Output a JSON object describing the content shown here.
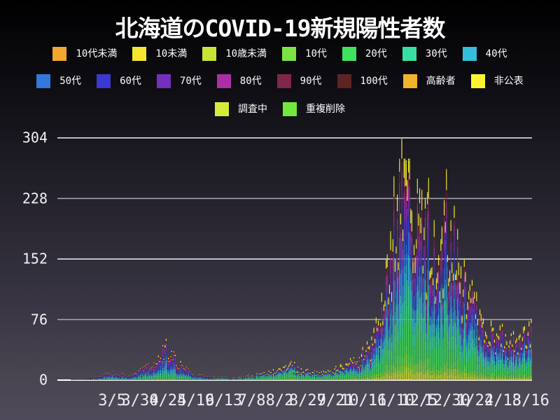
{
  "title": "北海道のCOVID-19新規陽性者数",
  "legend": {
    "rows": [
      [
        0,
        1,
        2,
        3,
        4,
        5,
        6
      ],
      [
        7,
        8,
        9,
        10,
        11,
        12,
        13,
        14
      ],
      [
        15,
        16
      ]
    ]
  },
  "colors": {
    "background_top": "#000000",
    "background_bottom": "#4f4b5a",
    "gridline_bright": "#f2f2f5",
    "gridline_dim": "#a9a9b4",
    "baseline": "#ffffff",
    "text": "#ffffff"
  },
  "chart_data": {
    "type": "bar",
    "stacked": true,
    "title": "北海道のCOVID-19新規陽性者数",
    "xlabel": "",
    "ylabel": "",
    "ylim": [
      0,
      304
    ],
    "y_ticks": [
      0,
      76,
      152,
      228,
      304
    ],
    "x_tick_labels": [
      "3/5",
      "3/30",
      "4/24",
      "5/19",
      "6/13",
      "7/8",
      "8/2",
      "8/27",
      "9/21",
      "10/16",
      "11/10",
      "12/5",
      "12/30",
      "1/24",
      "2/18",
      "3/16"
    ],
    "x_tick_interval_days": 25,
    "first_tick_day_index": 49,
    "days_total": 425,
    "grid": true,
    "legend_position": "top",
    "max_daily_total": 304,
    "peak_day_index": 308,
    "series": [
      {
        "name": "10代未満",
        "color": "#f2a72e"
      },
      {
        "name": "10未満",
        "color": "#f6e52f"
      },
      {
        "name": "10歳未満",
        "color": "#c9e436"
      },
      {
        "name": "10代",
        "color": "#7ce344"
      },
      {
        "name": "20代",
        "color": "#3fe25f"
      },
      {
        "name": "30代",
        "color": "#38dfa2"
      },
      {
        "name": "40代",
        "color": "#35bedc"
      },
      {
        "name": "50代",
        "color": "#3378db"
      },
      {
        "name": "60代",
        "color": "#3a39cf"
      },
      {
        "name": "70代",
        "color": "#7330be"
      },
      {
        "name": "80代",
        "color": "#ac2ea4"
      },
      {
        "name": "90代",
        "color": "#7e2747"
      },
      {
        "name": "100代",
        "color": "#5f2323"
      },
      {
        "name": "高齢者",
        "color": "#f2b32c"
      },
      {
        "name": "非公表",
        "color": "#fcf431"
      },
      {
        "name": "調査中",
        "color": "#d6ec3b"
      },
      {
        "name": "重複削除",
        "color": "#70e93c"
      }
    ],
    "envelope_daily_total": [
      [
        0,
        0
      ],
      [
        10,
        0
      ],
      [
        13,
        1
      ],
      [
        20,
        1
      ],
      [
        27,
        2
      ],
      [
        34,
        4
      ],
      [
        41,
        6
      ],
      [
        49,
        9
      ],
      [
        56,
        7
      ],
      [
        63,
        5
      ],
      [
        70,
        8
      ],
      [
        77,
        13
      ],
      [
        84,
        18
      ],
      [
        90,
        27
      ],
      [
        95,
        39
      ],
      [
        100,
        36
      ],
      [
        105,
        27
      ],
      [
        110,
        19
      ],
      [
        116,
        12
      ],
      [
        123,
        7
      ],
      [
        130,
        5
      ],
      [
        137,
        4
      ],
      [
        144,
        3
      ],
      [
        152,
        3
      ],
      [
        160,
        3
      ],
      [
        167,
        4
      ],
      [
        174,
        6
      ],
      [
        181,
        7
      ],
      [
        188,
        9
      ],
      [
        195,
        11
      ],
      [
        202,
        13
      ],
      [
        209,
        18
      ],
      [
        216,
        14
      ],
      [
        223,
        11
      ],
      [
        230,
        9
      ],
      [
        237,
        8
      ],
      [
        244,
        10
      ],
      [
        251,
        15
      ],
      [
        258,
        18
      ],
      [
        265,
        23
      ],
      [
        272,
        30
      ],
      [
        279,
        40
      ],
      [
        286,
        60
      ],
      [
        292,
        95
      ],
      [
        297,
        140
      ],
      [
        302,
        195
      ],
      [
        305,
        240
      ],
      [
        308,
        295
      ],
      [
        312,
        255
      ],
      [
        316,
        228
      ],
      [
        320,
        205
      ],
      [
        324,
        188
      ],
      [
        328,
        172
      ],
      [
        332,
        186
      ],
      [
        336,
        158
      ],
      [
        340,
        138
      ],
      [
        344,
        152
      ],
      [
        348,
        195
      ],
      [
        351,
        215
      ],
      [
        354,
        185
      ],
      [
        358,
        140
      ],
      [
        362,
        118
      ],
      [
        366,
        132
      ],
      [
        370,
        108
      ],
      [
        374,
        92
      ],
      [
        378,
        76
      ],
      [
        383,
        64
      ],
      [
        388,
        56
      ],
      [
        393,
        50
      ],
      [
        398,
        56
      ],
      [
        403,
        46
      ],
      [
        408,
        48
      ],
      [
        413,
        54
      ],
      [
        418,
        60
      ],
      [
        424,
        58
      ]
    ],
    "composition_periods": [
      {
        "from_day": 0,
        "fractions": [
          0.02,
          0.01,
          0.0,
          0.03,
          0.09,
          0.11,
          0.13,
          0.15,
          0.12,
          0.12,
          0.1,
          0.05,
          0.01,
          0.0,
          0.06,
          0.0,
          0.0
        ]
      },
      {
        "from_day": 140,
        "fractions": [
          0.0,
          0.02,
          0.02,
          0.06,
          0.24,
          0.15,
          0.12,
          0.1,
          0.07,
          0.05,
          0.04,
          0.01,
          0.0,
          0.0,
          0.12,
          0.0,
          0.0
        ]
      },
      {
        "from_day": 260,
        "fractions": [
          0.0,
          0.01,
          0.04,
          0.06,
          0.16,
          0.12,
          0.12,
          0.11,
          0.09,
          0.08,
          0.07,
          0.04,
          0.01,
          0.0,
          0.08,
          0.01,
          0.0
        ]
      }
    ]
  }
}
